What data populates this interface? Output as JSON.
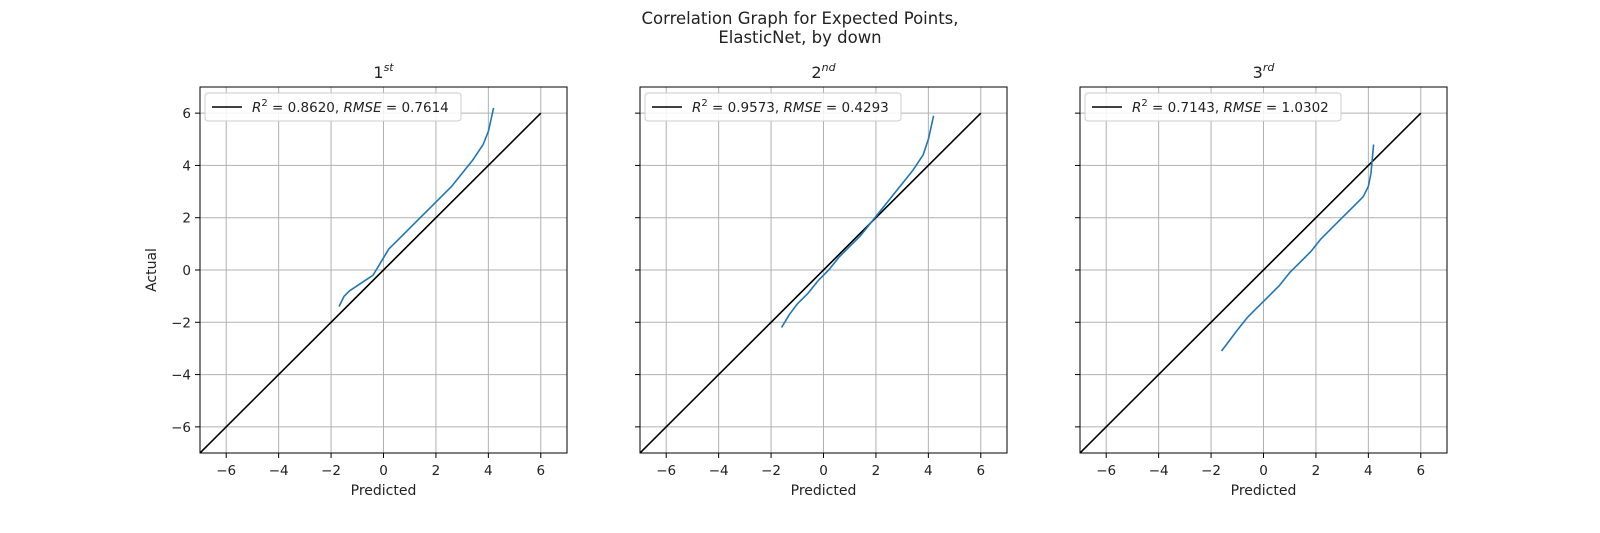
{
  "figure": {
    "title_line1": "Correlation Graph for Expected Points,",
    "title_line2": "ElasticNet, by down"
  },
  "chart_data": [
    {
      "type": "line",
      "title": "1",
      "title_sup": "st",
      "xlabel": "Predicted",
      "ylabel": "Actual",
      "xlim": [
        -7,
        7
      ],
      "ylim": [
        -7,
        7
      ],
      "xticks": [
        -6,
        -4,
        -2,
        0,
        2,
        4,
        6
      ],
      "yticks": [
        -6,
        -4,
        -2,
        0,
        2,
        4,
        6
      ],
      "grid": true,
      "legend_position": "upper-left",
      "legend_label": "R^2 = 0.8620, RMSE = 0.7614",
      "legend_parts": {
        "r2_label": "R",
        "r2_sup": "2",
        "r2_value": " = 0.8620, ",
        "rmse_label": "RMSE",
        "rmse_value": " = 0.7614"
      },
      "colors": {
        "identity": "#000000",
        "series": "#1f77b4"
      },
      "series": [
        {
          "role": "identity",
          "x": [
            -7,
            6
          ],
          "y": [
            -7,
            6
          ]
        },
        {
          "role": "observed",
          "x": [
            -1.7,
            -1.5,
            -1.3,
            -1.0,
            -0.7,
            -0.4,
            -0.1,
            0.2,
            0.6,
            1.0,
            1.4,
            1.8,
            2.2,
            2.6,
            3.0,
            3.4,
            3.8,
            4.0,
            4.2
          ],
          "y": [
            -1.4,
            -1.0,
            -0.8,
            -0.6,
            -0.4,
            -0.2,
            0.3,
            0.8,
            1.2,
            1.6,
            2.0,
            2.4,
            2.8,
            3.2,
            3.7,
            4.2,
            4.8,
            5.3,
            6.2
          ]
        }
      ]
    },
    {
      "type": "line",
      "title": "2",
      "title_sup": "nd",
      "xlabel": "Predicted",
      "ylabel": "",
      "xlim": [
        -7,
        7
      ],
      "ylim": [
        -7,
        7
      ],
      "xticks": [
        -6,
        -4,
        -2,
        0,
        2,
        4,
        6
      ],
      "yticks": [
        -6,
        -4,
        -2,
        0,
        2,
        4,
        6
      ],
      "grid": true,
      "legend_position": "upper-left",
      "legend_label": "R^2 = 0.9573, RMSE = 0.4293",
      "legend_parts": {
        "r2_label": "R",
        "r2_sup": "2",
        "r2_value": " = 0.9573, ",
        "rmse_label": "RMSE",
        "rmse_value": " = 0.4293"
      },
      "colors": {
        "identity": "#000000",
        "series": "#1f77b4"
      },
      "series": [
        {
          "role": "identity",
          "x": [
            -7,
            6
          ],
          "y": [
            -7,
            6
          ]
        },
        {
          "role": "observed",
          "x": [
            -1.6,
            -1.3,
            -1.0,
            -0.6,
            -0.2,
            0.2,
            0.6,
            1.0,
            1.4,
            1.8,
            2.2,
            2.6,
            3.0,
            3.4,
            3.8,
            4.0,
            4.2
          ],
          "y": [
            -2.2,
            -1.7,
            -1.3,
            -0.9,
            -0.4,
            0.0,
            0.5,
            0.9,
            1.3,
            1.8,
            2.3,
            2.8,
            3.3,
            3.8,
            4.4,
            5.0,
            5.9
          ]
        }
      ]
    },
    {
      "type": "line",
      "title": "3",
      "title_sup": "rd",
      "xlabel": "Predicted",
      "ylabel": "",
      "xlim": [
        -7,
        7
      ],
      "ylim": [
        -7,
        7
      ],
      "xticks": [
        -6,
        -4,
        -2,
        0,
        2,
        4,
        6
      ],
      "yticks": [
        -6,
        -4,
        -2,
        0,
        2,
        4,
        6
      ],
      "grid": true,
      "legend_position": "upper-left",
      "legend_label": "R^2 = 0.7143, RMSE = 1.0302",
      "legend_parts": {
        "r2_label": "R",
        "r2_sup": "2",
        "r2_value": " = 0.7143, ",
        "rmse_label": "RMSE",
        "rmse_value": " = 1.0302"
      },
      "colors": {
        "identity": "#000000",
        "series": "#1f77b4"
      },
      "series": [
        {
          "role": "identity",
          "x": [
            -7,
            6
          ],
          "y": [
            -7,
            6
          ]
        },
        {
          "role": "observed",
          "x": [
            -1.6,
            -1.3,
            -1.0,
            -0.6,
            -0.2,
            0.2,
            0.6,
            1.0,
            1.4,
            1.8,
            2.2,
            2.6,
            3.0,
            3.4,
            3.8,
            4.0,
            4.1,
            4.2
          ],
          "y": [
            -3.1,
            -2.7,
            -2.3,
            -1.8,
            -1.4,
            -1.0,
            -0.6,
            -0.1,
            0.3,
            0.7,
            1.2,
            1.6,
            2.0,
            2.4,
            2.8,
            3.2,
            3.7,
            4.8
          ]
        }
      ]
    }
  ]
}
